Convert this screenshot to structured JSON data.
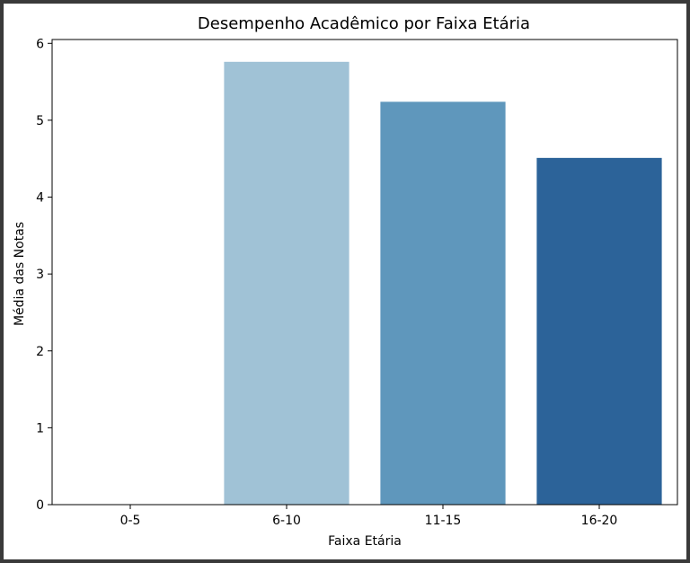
{
  "chart_data": {
    "type": "bar",
    "title": "Desempenho Acadêmico por Faixa Etária",
    "xlabel": "Faixa Etária",
    "ylabel": "Média das Notas",
    "categories": [
      "0-5",
      "6-10",
      "11-15",
      "16-20"
    ],
    "values": [
      0,
      5.76,
      5.24,
      4.51
    ],
    "colors": [
      "#ffffff",
      "#a0c2d6",
      "#5f97bc",
      "#2c6399"
    ],
    "ylim": [
      0,
      6.05
    ],
    "yticks": [
      0,
      1,
      2,
      3,
      4,
      5,
      6
    ],
    "grid": false,
    "legend": "none"
  }
}
